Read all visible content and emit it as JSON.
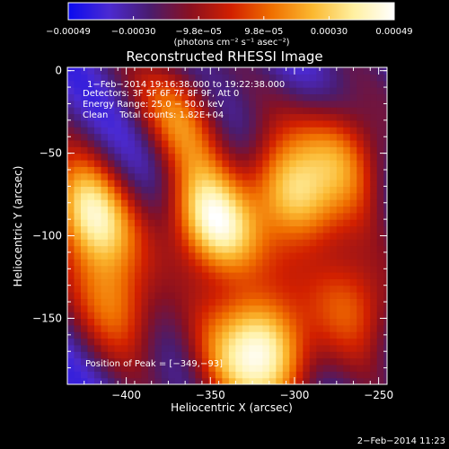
{
  "chart_data": {
    "type": "heatmap",
    "title": "Reconstructed RHESSI Image",
    "xlabel": "Heliocentric X (arcsec)",
    "ylabel": "Heliocentric Y (arcsec)",
    "xlim": [
      -435,
      -245
    ],
    "ylim": [
      -190,
      2
    ],
    "xticks": [
      -400,
      -350,
      -300,
      -250
    ],
    "yticks": [
      0,
      -50,
      -100,
      -150
    ],
    "xtick_labels": [
      "−400",
      "−350",
      "−300",
      "−250"
    ],
    "ytick_labels": [
      "0",
      "−50",
      "−100",
      "−150"
    ],
    "colorbar": {
      "min": -0.00049,
      "max": 0.00049,
      "tick_labels": [
        "−0.00049",
        "−0.00030",
        "−9.8e−05",
        "9.8e−05",
        "0.00030",
        "0.00049"
      ],
      "unit_label": "(photons cm⁻² s⁻¹ asec⁻²)"
    },
    "annotations": [
      "1−Feb−2014 19:16:38.000 to 19:22:38.000",
      "Detectors: 3F 5F 6F 7F 8F 9F, Att 0",
      "Energy Range: 25.0 − 50.0 keV",
      "Clean    Total counts: 1.82E+04"
    ],
    "peak_label": "Position of Peak = [−349,−93]",
    "peak": {
      "x": -349,
      "y": -93
    },
    "sources": [
      {
        "x": -349,
        "y": -93,
        "intensity": 1.0
      },
      {
        "x": -422,
        "y": -88,
        "intensity": 0.9
      },
      {
        "x": -302,
        "y": -75,
        "intensity": 0.85
      },
      {
        "x": -315,
        "y": -165,
        "intensity": 0.9
      },
      {
        "x": -405,
        "y": -140,
        "intensity": 0.55
      },
      {
        "x": -368,
        "y": -25,
        "intensity": 0.5
      },
      {
        "x": -270,
        "y": -50,
        "intensity": 0.6
      },
      {
        "x": -265,
        "y": -140,
        "intensity": 0.55
      },
      {
        "x": -340,
        "y": -185,
        "intensity": 0.5
      }
    ],
    "colormap_colors": [
      "#0a0af0",
      "#4b2ad2",
      "#4a1c6e",
      "#8a1020",
      "#d22000",
      "#f07000",
      "#fbb830",
      "#fff0a0",
      "#ffffff"
    ]
  },
  "footer": {
    "timestamp": "2−Feb−2014 11:23"
  }
}
